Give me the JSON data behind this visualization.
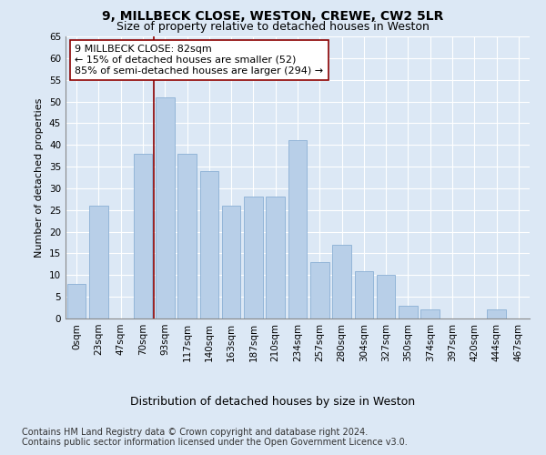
{
  "title1": "9, MILLBECK CLOSE, WESTON, CREWE, CW2 5LR",
  "title2": "Size of property relative to detached houses in Weston",
  "xlabel": "Distribution of detached houses by size in Weston",
  "ylabel": "Number of detached properties",
  "categories": [
    "0sqm",
    "23sqm",
    "47sqm",
    "70sqm",
    "93sqm",
    "117sqm",
    "140sqm",
    "163sqm",
    "187sqm",
    "210sqm",
    "234sqm",
    "257sqm",
    "280sqm",
    "304sqm",
    "327sqm",
    "350sqm",
    "374sqm",
    "397sqm",
    "420sqm",
    "444sqm",
    "467sqm"
  ],
  "values": [
    8,
    26,
    0,
    38,
    51,
    38,
    34,
    26,
    28,
    28,
    41,
    13,
    17,
    11,
    10,
    3,
    2,
    0,
    0,
    2,
    0
  ],
  "bar_color": "#b8cfe8",
  "bar_edge_color": "#8aafd4",
  "background_color": "#dce8f5",
  "grid_color": "#ffffff",
  "vline_x": 3.5,
  "vline_color": "#8b0000",
  "annotation_text": "9 MILLBECK CLOSE: 82sqm\n← 15% of detached houses are smaller (52)\n85% of semi-detached houses are larger (294) →",
  "annotation_box_color": "#ffffff",
  "annotation_box_edge_color": "#8b0000",
  "ylim": [
    0,
    65
  ],
  "yticks": [
    0,
    5,
    10,
    15,
    20,
    25,
    30,
    35,
    40,
    45,
    50,
    55,
    60,
    65
  ],
  "footer1": "Contains HM Land Registry data © Crown copyright and database right 2024.",
  "footer2": "Contains public sector information licensed under the Open Government Licence v3.0.",
  "title1_fontsize": 10,
  "title2_fontsize": 9,
  "xlabel_fontsize": 9,
  "ylabel_fontsize": 8,
  "tick_fontsize": 7.5,
  "annotation_fontsize": 8,
  "footer_fontsize": 7
}
